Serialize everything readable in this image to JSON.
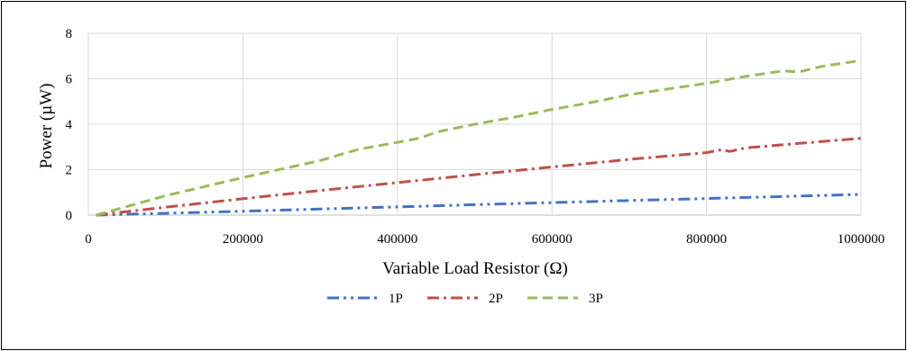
{
  "chart_data": {
    "type": "line",
    "title": "",
    "xlabel": "Variable Load Resistor (Ω)",
    "ylabel": "Power (µW)",
    "xlim": [
      0,
      1000000
    ],
    "ylim": [
      0,
      8
    ],
    "xticks": [
      "0",
      "200000",
      "400000",
      "600000",
      "800000",
      "1000000"
    ],
    "yticks": [
      "0",
      "2",
      "4",
      "6",
      "8"
    ],
    "grid": true,
    "legend_position": "bottom",
    "series": [
      {
        "name": "1P",
        "color": "#4472c4",
        "dash": "dash-dot-dot",
        "x": [
          10000,
          100000,
          200000,
          300000,
          400000,
          500000,
          600000,
          700000,
          800000,
          900000,
          1000000
        ],
        "y": [
          0.0,
          0.08,
          0.17,
          0.27,
          0.36,
          0.46,
          0.55,
          0.64,
          0.73,
          0.82,
          0.91
        ]
      },
      {
        "name": "2P",
        "color": "#c0504d",
        "dash": "dash-dot",
        "x": [
          10000,
          100000,
          200000,
          300000,
          400000,
          500000,
          600000,
          640000,
          700000,
          800000,
          820000,
          830000,
          850000,
          900000,
          1000000
        ],
        "y": [
          0.0,
          0.35,
          0.72,
          1.08,
          1.43,
          1.78,
          2.12,
          2.25,
          2.45,
          2.75,
          2.88,
          2.8,
          2.95,
          3.1,
          3.38
        ]
      },
      {
        "name": "3P",
        "color": "#9bbb59",
        "dash": "dash",
        "x": [
          10000,
          100000,
          200000,
          300000,
          350000,
          400000,
          430000,
          450000,
          500000,
          550000,
          600000,
          650000,
          700000,
          750000,
          800000,
          850000,
          900000,
          920000,
          950000,
          1000000
        ],
        "y": [
          0.0,
          0.85,
          1.65,
          2.4,
          2.9,
          3.2,
          3.4,
          3.65,
          4.0,
          4.3,
          4.65,
          4.95,
          5.3,
          5.55,
          5.8,
          6.1,
          6.35,
          6.3,
          6.55,
          6.8
        ]
      }
    ]
  }
}
